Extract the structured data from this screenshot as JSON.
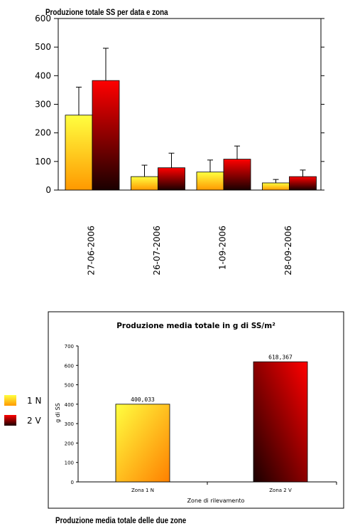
{
  "charts": [
    {
      "type": "bar",
      "title": "Produzione totale SS per data e zona",
      "categories": [
        "27-06-2006",
        "26-07-2006",
        "1-09-2006",
        "28-09-2006"
      ],
      "series": [
        {
          "name": "1 N",
          "values": [
            262,
            47,
            63,
            25
          ],
          "errors": [
            98,
            40,
            42,
            12
          ]
        },
        {
          "name": "2 V",
          "values": [
            383,
            78,
            108,
            47
          ],
          "errors": [
            113,
            51,
            46,
            23
          ]
        }
      ],
      "ylim": [
        0,
        600
      ],
      "yticks": [
        0,
        100,
        200,
        300,
        400,
        500,
        600
      ],
      "legend": "left"
    },
    {
      "type": "bar",
      "title": "Produzione media totale in g di SS/m²",
      "categories": [
        "Zona 1 N",
        "Zona 2 V"
      ],
      "values": [
        400.033,
        618.367
      ],
      "value_labels": [
        "400,033",
        "618,367"
      ],
      "xlabel": "Zone di rilevamento",
      "ylabel": "g di SS",
      "ylim": [
        0,
        700
      ],
      "yticks": [
        0,
        100,
        200,
        300,
        400,
        500,
        600,
        700
      ]
    }
  ],
  "legend": {
    "items": [
      {
        "label": "1 N",
        "color": "#ffd200"
      },
      {
        "label": "2 V",
        "color": "#cc0000"
      }
    ]
  },
  "caption": "Produzione media totale delle due zone",
  "colors": {
    "yellow_top": "#ffff40",
    "yellow_bottom": "#ff9900",
    "red_top": "#ff0000",
    "red_bottom": "#1a0000"
  }
}
